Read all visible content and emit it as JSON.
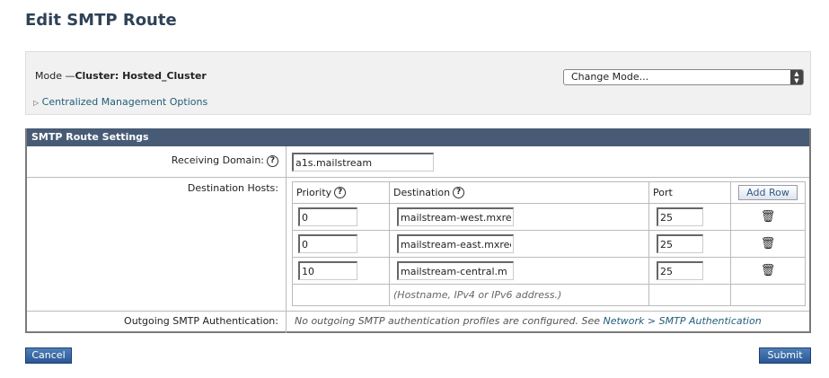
{
  "page": {
    "title": "Edit SMTP Route"
  },
  "mode": {
    "label": "Mode —",
    "value": "Cluster: Hosted_Cluster",
    "change_mode": "Change Mode...",
    "centralized": "Centralized Management Options"
  },
  "settings": {
    "header": "SMTP Route Settings",
    "receiving_domain_label": "Receiving Domain:",
    "receiving_domain_value": "a1s.mailstream",
    "destination_hosts_label": "Destination Hosts:",
    "columns": {
      "priority": "Priority",
      "destination": "Destination",
      "port": "Port",
      "add_row": "Add Row"
    },
    "rows": [
      {
        "priority": "0",
        "destination": "mailstream-west.mxre",
        "port": "25"
      },
      {
        "priority": "0",
        "destination": "mailstream-east.mxrec",
        "port": "25"
      },
      {
        "priority": "10",
        "destination": "mailstream-central.m",
        "port": "25"
      }
    ],
    "hint": "(Hostname, IPv4 or IPv6 address.)",
    "outgoing_label": "Outgoing SMTP Authentication:",
    "outgoing_text": "No outgoing SMTP authentication profiles are configured. See ",
    "outgoing_link": "Network > SMTP Authentication"
  },
  "buttons": {
    "cancel": "Cancel",
    "submit": "Submit"
  },
  "colors": {
    "header": "#485b76",
    "link": "#1f5d7a",
    "button": "#2a5796"
  }
}
